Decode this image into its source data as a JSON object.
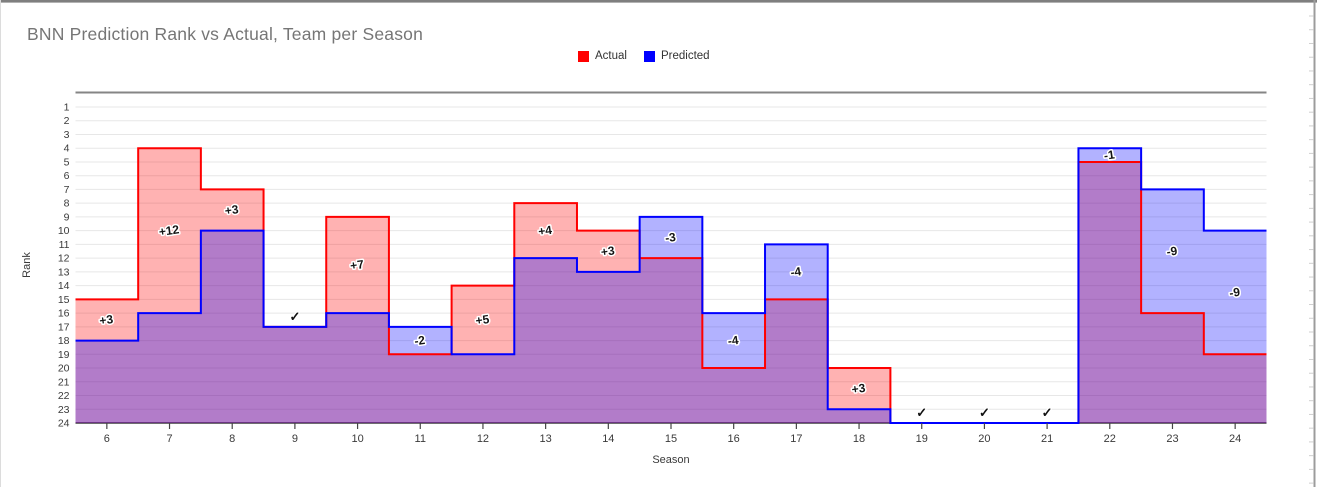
{
  "window": {
    "title": "BNN Prediction Rank vs Actual, Team per Season"
  },
  "chart_data": {
    "type": "area",
    "subtype": "step-area-overlay",
    "title": "BNN Prediction Rank vs Actual, Team per Season",
    "xlabel": "Season",
    "ylabel": "Rank",
    "x": [
      6,
      7,
      8,
      9,
      10,
      11,
      12,
      13,
      14,
      15,
      16,
      17,
      18,
      19,
      20,
      21,
      22,
      23,
      24
    ],
    "y_ticks": [
      1,
      2,
      3,
      4,
      5,
      6,
      7,
      8,
      9,
      10,
      11,
      12,
      13,
      14,
      15,
      16,
      17,
      18,
      19,
      20,
      21,
      22,
      23,
      24
    ],
    "xlim": [
      5.5,
      24.5
    ],
    "ylim": [
      1,
      24
    ],
    "y_inverted": true,
    "grid": "horizontal",
    "legend_position": "top-center",
    "series": [
      {
        "name": "Actual",
        "color": "#ff0000",
        "fill_opacity": 0.3,
        "values": [
          15,
          4,
          7,
          17,
          9,
          19,
          14,
          8,
          10,
          12,
          20,
          15,
          20,
          24,
          24,
          24,
          5,
          16,
          19
        ]
      },
      {
        "name": "Predicted",
        "color": "#0000ff",
        "fill_opacity": 0.3,
        "values": [
          18,
          16,
          10,
          17,
          16,
          17,
          19,
          12,
          13,
          9,
          16,
          11,
          23,
          24,
          24,
          24,
          4,
          7,
          10
        ]
      }
    ],
    "annotations": [
      {
        "season": 6,
        "label": "+3",
        "type": "diff"
      },
      {
        "season": 7,
        "label": "+12",
        "type": "diff"
      },
      {
        "season": 8,
        "label": "+3",
        "type": "diff"
      },
      {
        "season": 9,
        "label": "✓",
        "type": "match"
      },
      {
        "season": 10,
        "label": "+7",
        "type": "diff"
      },
      {
        "season": 11,
        "label": "-2",
        "type": "diff"
      },
      {
        "season": 12,
        "label": "+5",
        "type": "diff"
      },
      {
        "season": 13,
        "label": "+4",
        "type": "diff"
      },
      {
        "season": 14,
        "label": "+3",
        "type": "diff"
      },
      {
        "season": 15,
        "label": "-3",
        "type": "diff"
      },
      {
        "season": 16,
        "label": "-4",
        "type": "diff"
      },
      {
        "season": 17,
        "label": "-4",
        "type": "diff"
      },
      {
        "season": 18,
        "label": "+3",
        "type": "diff"
      },
      {
        "season": 19,
        "label": "✓",
        "type": "match"
      },
      {
        "season": 20,
        "label": "✓",
        "type": "match"
      },
      {
        "season": 21,
        "label": "✓",
        "type": "match"
      },
      {
        "season": 22,
        "label": "-1",
        "type": "diff"
      },
      {
        "season": 23,
        "label": "-9",
        "type": "diff"
      },
      {
        "season": 24,
        "label": "-9",
        "type": "diff"
      }
    ]
  }
}
